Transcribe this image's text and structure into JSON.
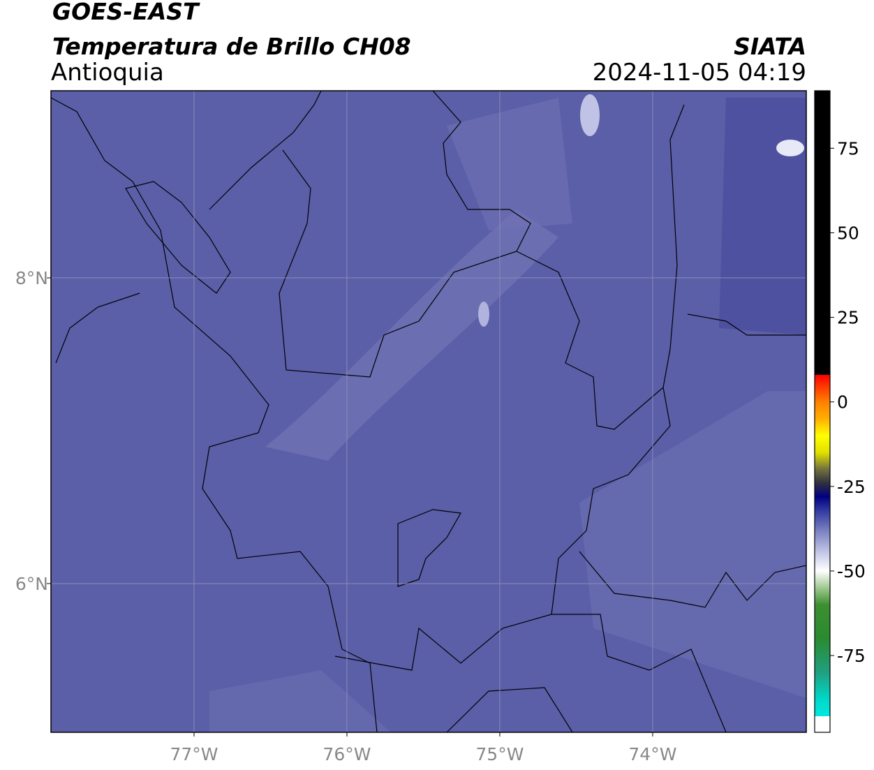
{
  "chart_data": {
    "type": "map",
    "title": "GOES-EAST",
    "subtitle": "Temperatura de Brillo CH08",
    "region": "Antioquia",
    "source": "SIATA",
    "datetime": "2024-11-05 04:19",
    "xlim": [
      -77.936,
      -72.995
    ],
    "ylim": [
      5.027,
      9.224
    ],
    "xticks": [
      {
        "value": -77,
        "label": "77°W"
      },
      {
        "value": -76,
        "label": "76°W"
      },
      {
        "value": -75,
        "label": "75°W"
      },
      {
        "value": -74,
        "label": "74°W"
      }
    ],
    "yticks": [
      {
        "value": 6,
        "label": "6°N"
      },
      {
        "value": 8,
        "label": "8°N"
      }
    ],
    "grid": true,
    "background_color": "#5a5fa8",
    "colorbar": {
      "lim": [
        -97.7,
        92
      ],
      "ticks": [
        -75,
        -50,
        -25,
        0,
        25,
        50,
        75
      ],
      "stops": [
        {
          "value": -97.7,
          "color": "#ffffff"
        },
        {
          "value": -93,
          "color": "#ffffff"
        },
        {
          "value": -93,
          "color": "#00e8e0"
        },
        {
          "value": -88,
          "color": "#00d8c8"
        },
        {
          "value": -80,
          "color": "#20a080"
        },
        {
          "value": -70,
          "color": "#2a8a30"
        },
        {
          "value": -60,
          "color": "#3c9030"
        },
        {
          "value": -55,
          "color": "#a0c890"
        },
        {
          "value": -50,
          "color": "#ffffff"
        },
        {
          "value": -45,
          "color": "#c8cce8"
        },
        {
          "value": -38,
          "color": "#7880c0"
        },
        {
          "value": -32,
          "color": "#3038a0"
        },
        {
          "value": -28,
          "color": "#000080"
        },
        {
          "value": -24,
          "color": "#303040"
        },
        {
          "value": -20,
          "color": "#707040"
        },
        {
          "value": -15,
          "color": "#e0e000"
        },
        {
          "value": -10,
          "color": "#ffff00"
        },
        {
          "value": -5,
          "color": "#ffb000"
        },
        {
          "value": 0,
          "color": "#ff8000"
        },
        {
          "value": 5,
          "color": "#ff3000"
        },
        {
          "value": 8,
          "color": "#ff0000"
        },
        {
          "value": 8,
          "color": "#000000"
        },
        {
          "value": 92,
          "color": "#000000"
        }
      ]
    }
  }
}
